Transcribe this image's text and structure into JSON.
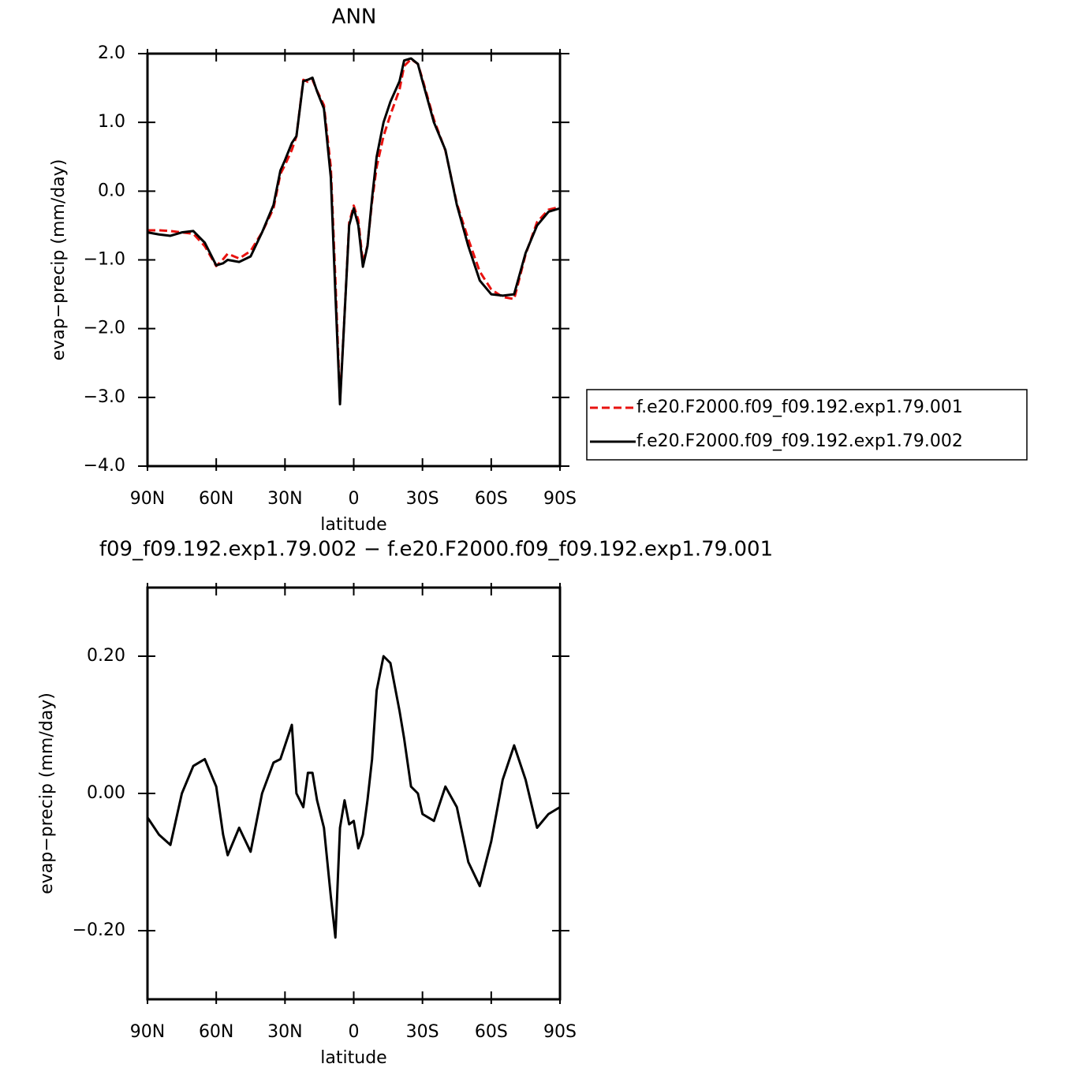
{
  "chart_data": [
    {
      "type": "line",
      "title": "ANN",
      "xlabel": "latitude",
      "ylabel": "evap−precip (mm/day)",
      "x": [
        90,
        85,
        80,
        75,
        70,
        65,
        60,
        57,
        55,
        50,
        45,
        40,
        35,
        32,
        30,
        27,
        25,
        22,
        20,
        18,
        16,
        13,
        10,
        8,
        6,
        4,
        2,
        0,
        -2,
        -4,
        -6,
        -8,
        -10,
        -13,
        -16,
        -20,
        -22,
        -25,
        -28,
        -30,
        -35,
        -40,
        -45,
        -50,
        -55,
        -60,
        -65,
        -70,
        -75,
        -80,
        -85,
        -90
      ],
      "series": [
        {
          "name": "f.e20.F2000.f09_f09.192.exp1.79.001",
          "color": "#e8120f",
          "dash": true,
          "values": [
            -0.57,
            -0.57,
            -0.58,
            -0.6,
            -0.62,
            -0.8,
            -1.09,
            -0.99,
            -0.91,
            -0.98,
            -0.87,
            -0.6,
            -0.25,
            0.25,
            0.38,
            0.6,
            0.8,
            1.62,
            1.59,
            1.62,
            1.46,
            1.25,
            0.35,
            -1.29,
            -3.05,
            -1.79,
            -0.46,
            -0.21,
            -0.42,
            -1.04,
            -0.79,
            -0.15,
            0.35,
            0.8,
            1.11,
            1.48,
            1.82,
            1.92,
            1.85,
            1.63,
            1.04,
            0.59,
            -0.18,
            -0.7,
            -1.17,
            -1.43,
            -1.54,
            -1.57,
            -0.92,
            -0.45,
            -0.27,
            -0.23
          ]
        },
        {
          "name": "f.e20.F2000.f09_f09.192.exp1.79.002",
          "color": "#000000",
          "dash": false,
          "values": [
            -0.6,
            -0.63,
            -0.65,
            -0.6,
            -0.58,
            -0.75,
            -1.08,
            -1.05,
            -1.0,
            -1.03,
            -0.95,
            -0.6,
            -0.2,
            0.3,
            0.45,
            0.7,
            0.8,
            1.6,
            1.62,
            1.65,
            1.45,
            1.2,
            0.2,
            -1.5,
            -3.1,
            -1.8,
            -0.5,
            -0.25,
            -0.5,
            -1.1,
            -0.8,
            -0.1,
            0.5,
            1.0,
            1.3,
            1.6,
            1.9,
            1.93,
            1.85,
            1.6,
            1.0,
            0.6,
            -0.2,
            -0.8,
            -1.3,
            -1.5,
            -1.52,
            -1.5,
            -0.9,
            -0.5,
            -0.3,
            -0.25
          ]
        }
      ],
      "xlim": [
        90,
        -90
      ],
      "xticks": [
        {
          "value": 90,
          "label": "90N"
        },
        {
          "value": 60,
          "label": "60N"
        },
        {
          "value": 30,
          "label": "30N"
        },
        0,
        {
          "value": -30,
          "label": "30S"
        },
        {
          "value": -60,
          "label": "60S"
        },
        {
          "value": -90,
          "label": "90S"
        }
      ],
      "ylim": [
        -4,
        2
      ],
      "yticks": [
        {
          "value": -4,
          "label": "−4.0"
        },
        {
          "value": -3,
          "label": "−3.0"
        },
        {
          "value": -2,
          "label": "−2.0"
        },
        {
          "value": -1,
          "label": "−1.0"
        },
        {
          "value": 0,
          "label": "0.0"
        },
        {
          "value": 1,
          "label": "1.0"
        },
        {
          "value": 2,
          "label": "2.0"
        }
      ],
      "legend": "right"
    },
    {
      "type": "line",
      "title": "f09_f09.192.exp1.79.002 − f.e20.F2000.f09_f09.192.exp1.79.001",
      "xlabel": "latitude",
      "ylabel": "evap−precip (mm/day)",
      "x": [
        90,
        85,
        80,
        75,
        70,
        65,
        60,
        57,
        55,
        50,
        45,
        40,
        35,
        32,
        30,
        27,
        25,
        22,
        20,
        18,
        16,
        13,
        10,
        8,
        6,
        4,
        2,
        0,
        -2,
        -4,
        -6,
        -8,
        -10,
        -13,
        -16,
        -20,
        -22,
        -25,
        -28,
        -30,
        -35,
        -40,
        -45,
        -50,
        -55,
        -60,
        -65,
        -70,
        -75,
        -80,
        -85,
        -90
      ],
      "series": [
        {
          "color": "#000000",
          "values": [
            -0.035,
            -0.06,
            -0.075,
            0.0,
            0.04,
            0.05,
            0.01,
            -0.06,
            -0.09,
            -0.05,
            -0.085,
            0.0,
            0.045,
            0.05,
            0.07,
            0.1,
            0.0,
            -0.02,
            0.03,
            0.03,
            -0.01,
            -0.05,
            -0.15,
            -0.21,
            -0.05,
            -0.01,
            -0.045,
            -0.04,
            -0.08,
            -0.06,
            -0.01,
            0.05,
            0.15,
            0.2,
            0.19,
            0.12,
            0.08,
            0.01,
            0.0,
            -0.03,
            -0.04,
            0.01,
            -0.02,
            -0.1,
            -0.135,
            -0.07,
            0.02,
            0.07,
            0.02,
            -0.05,
            -0.03,
            -0.02
          ]
        }
      ],
      "xlim": [
        90,
        -90
      ],
      "xticks": [
        {
          "value": 90,
          "label": "90N"
        },
        {
          "value": 60,
          "label": "60N"
        },
        {
          "value": 30,
          "label": "30N"
        },
        0,
        {
          "value": -30,
          "label": "30S"
        },
        {
          "value": -60,
          "label": "60S"
        },
        {
          "value": -90,
          "label": "90S"
        }
      ],
      "ylim": [
        -0.3,
        0.3
      ],
      "yticks": [
        {
          "value": -0.2,
          "label": "−0.20"
        },
        {
          "value": 0,
          "label": "0.00"
        },
        {
          "value": 0.2,
          "label": "0.20"
        }
      ]
    }
  ]
}
